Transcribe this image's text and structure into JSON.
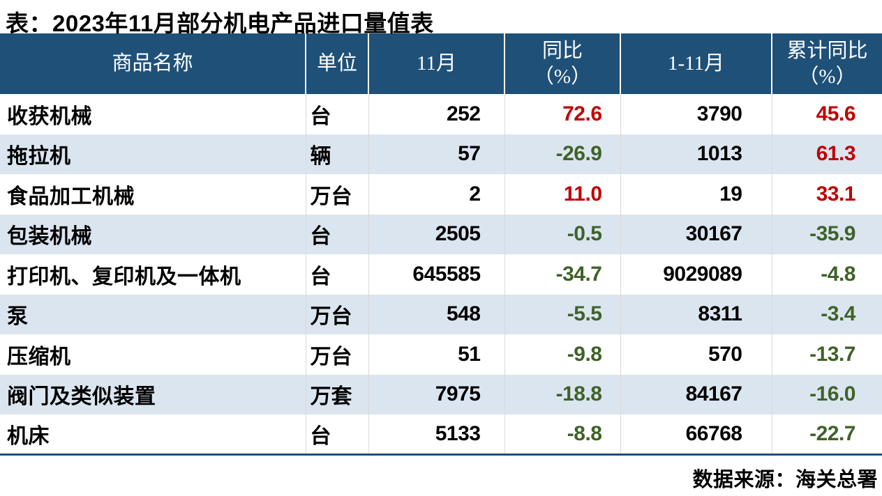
{
  "page": {
    "title": "表：2023年11月部分机电产品进口量值表",
    "source_note": "数据来源：海关总署"
  },
  "colors": {
    "header_bg": "#1F5078",
    "alt_row_bg": "#DBE5F0",
    "positive_text": "#C00000",
    "negative_text": "#3F6228",
    "bottom_border": "#1F4E79"
  },
  "table": {
    "headers": [
      {
        "line1": "商品名称",
        "line2": ""
      },
      {
        "line1": "单位",
        "line2": ""
      },
      {
        "line1": "11月",
        "line2": ""
      },
      {
        "line1": "同比",
        "line2": "（%）"
      },
      {
        "line1": "1-11月",
        "line2": ""
      },
      {
        "line1": "累计同比",
        "line2": "（%）"
      }
    ],
    "rows": [
      {
        "name": "收获机械",
        "unit": "台",
        "nov": "252",
        "yoy": "72.6",
        "cum": "3790",
        "cum_yoy": "45.6"
      },
      {
        "name": "拖拉机",
        "unit": "辆",
        "nov": "57",
        "yoy": "-26.9",
        "cum": "1013",
        "cum_yoy": "61.3"
      },
      {
        "name": "食品加工机械",
        "unit": "万台",
        "nov": "2",
        "yoy": "11.0",
        "cum": "19",
        "cum_yoy": "33.1"
      },
      {
        "name": "包装机械",
        "unit": "台",
        "nov": "2505",
        "yoy": "-0.5",
        "cum": "30167",
        "cum_yoy": "-35.9"
      },
      {
        "name": "打印机、复印机及一体机",
        "unit": "台",
        "nov": "645585",
        "yoy": "-34.7",
        "cum": "9029089",
        "cum_yoy": "-4.8"
      },
      {
        "name": "泵",
        "unit": "万台",
        "nov": "548",
        "yoy": "-5.5",
        "cum": "8311",
        "cum_yoy": "-3.4"
      },
      {
        "name": "压缩机",
        "unit": "万台",
        "nov": "51",
        "yoy": "-9.8",
        "cum": "570",
        "cum_yoy": "-13.7"
      },
      {
        "name": "阀门及类似装置",
        "unit": "万套",
        "nov": "7975",
        "yoy": "-18.8",
        "cum": "84167",
        "cum_yoy": "-16.0"
      },
      {
        "name": "机床",
        "unit": "台",
        "nov": "5133",
        "yoy": "-8.8",
        "cum": "66768",
        "cum_yoy": "-22.7"
      }
    ]
  },
  "chart_data": {
    "type": "table",
    "title": "表：2023年11月部分机电产品进口量值表",
    "columns": [
      "商品名称",
      "单位",
      "11月",
      "同比（%）",
      "1-11月",
      "累计同比（%）"
    ],
    "rows": [
      [
        "收获机械",
        "台",
        252,
        72.6,
        3790,
        45.6
      ],
      [
        "拖拉机",
        "辆",
        57,
        -26.9,
        1013,
        61.3
      ],
      [
        "食品加工机械",
        "万台",
        2,
        11.0,
        19,
        33.1
      ],
      [
        "包装机械",
        "台",
        2505,
        -0.5,
        30167,
        -35.9
      ],
      [
        "打印机、复印机及一体机",
        "台",
        645585,
        -34.7,
        9029089,
        -4.8
      ],
      [
        "泵",
        "万台",
        548,
        -5.5,
        8311,
        -3.4
      ],
      [
        "压缩机",
        "万台",
        51,
        -9.8,
        570,
        -13.7
      ],
      [
        "阀门及类似装置",
        "万套",
        7975,
        -18.8,
        84167,
        -16.0
      ],
      [
        "机床",
        "台",
        5133,
        -8.8,
        66768,
        -22.7
      ]
    ],
    "value_color_rule": "positive values red #C00000, negative values green #3F6228",
    "source": "数据来源：海关总署"
  }
}
